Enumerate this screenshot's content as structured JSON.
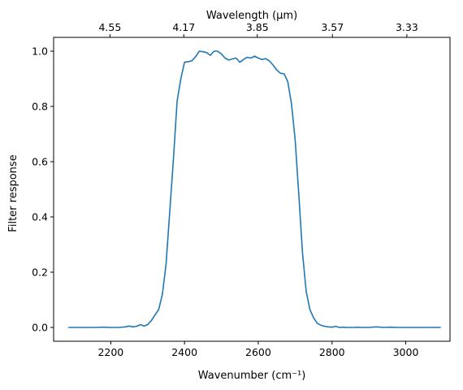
{
  "chart_data": {
    "type": "line",
    "xlabel": "Wavenumber (cm⁻¹)",
    "ylabel": "Filter response",
    "top_xlabel": "Wavelength (μm)",
    "xlim": [
      2045,
      3120
    ],
    "ylim": [
      -0.05,
      1.05
    ],
    "x_ticks": [
      2200,
      2400,
      2600,
      2800,
      3000
    ],
    "x_tick_labels": [
      "2200",
      "2400",
      "2600",
      "2800",
      "3000"
    ],
    "y_ticks": [
      0.0,
      0.2,
      0.4,
      0.6,
      0.8,
      1.0
    ],
    "y_tick_labels": [
      "0.0",
      "0.2",
      "0.4",
      "0.6",
      "0.8",
      "1.0"
    ],
    "top_ticks_wavelength_um": [
      4.55,
      4.17,
      3.85,
      3.57,
      3.33
    ],
    "top_tick_labels": [
      "4.55",
      "4.17",
      "3.85",
      "3.57",
      "3.33"
    ],
    "grid": false,
    "line_color": "#1f77b4",
    "series": [
      {
        "x": [
          2085,
          2100,
          2120,
          2140,
          2160,
          2180,
          2200,
          2220,
          2240,
          2250,
          2260,
          2270,
          2280,
          2285,
          2290,
          2300,
          2310,
          2320,
          2330,
          2340,
          2350,
          2360,
          2370,
          2380,
          2390,
          2400,
          2410,
          2420,
          2430,
          2440,
          2450,
          2460,
          2470,
          2480,
          2490,
          2500,
          2510,
          2520,
          2530,
          2540,
          2550,
          2560,
          2570,
          2580,
          2590,
          2600,
          2610,
          2620,
          2630,
          2640,
          2650,
          2660,
          2670,
          2680,
          2690,
          2700,
          2710,
          2720,
          2730,
          2740,
          2750,
          2760,
          2770,
          2780,
          2790,
          2800,
          2810,
          2820,
          2830,
          2840,
          2850,
          2860,
          2870,
          2880,
          2890,
          2900,
          2920,
          2940,
          2960,
          2980,
          3000,
          3020,
          3040,
          3060,
          3080,
          3095
        ],
        "y": [
          0.0,
          0.0,
          0.0,
          0.0,
          0.0,
          0.001,
          0.0,
          0.0,
          0.002,
          0.005,
          0.002,
          0.004,
          0.01,
          0.008,
          0.005,
          0.01,
          0.025,
          0.045,
          0.065,
          0.12,
          0.23,
          0.42,
          0.61,
          0.82,
          0.9,
          0.96,
          0.962,
          0.965,
          0.98,
          1.0,
          0.998,
          0.995,
          0.985,
          1.0,
          1.0,
          0.99,
          0.975,
          0.968,
          0.972,
          0.975,
          0.96,
          0.97,
          0.978,
          0.975,
          0.982,
          0.975,
          0.97,
          0.973,
          0.965,
          0.95,
          0.932,
          0.92,
          0.918,
          0.89,
          0.81,
          0.68,
          0.48,
          0.27,
          0.13,
          0.065,
          0.035,
          0.015,
          0.008,
          0.004,
          0.002,
          0.001,
          0.004,
          0.0,
          0.001,
          0.0,
          0.0,
          0.0,
          0.001,
          0.0,
          0.0,
          0.0,
          0.002,
          0.0,
          0.001,
          0.0,
          0.0,
          0.0,
          0.0,
          0.0,
          0.0,
          0.0
        ]
      }
    ]
  }
}
